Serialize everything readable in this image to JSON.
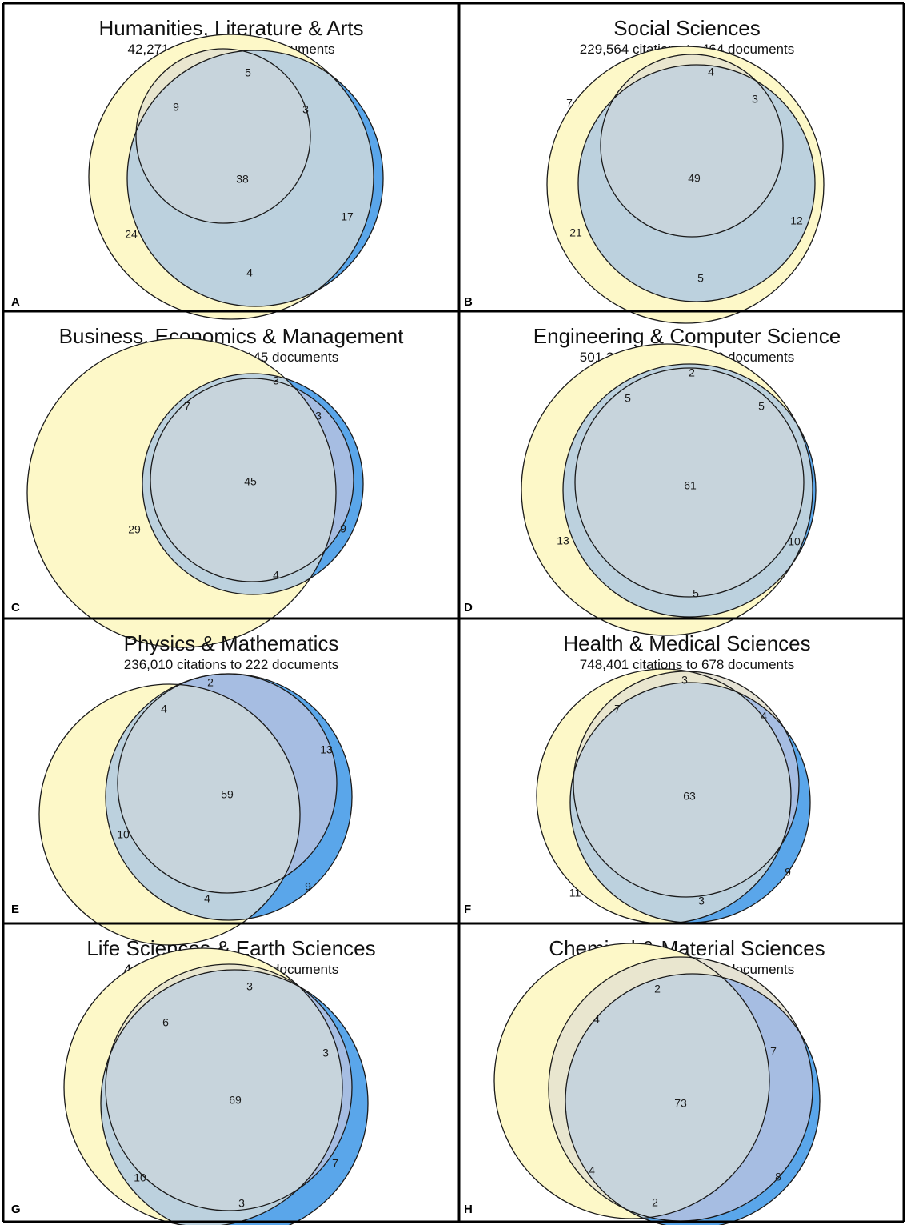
{
  "colors": {
    "set_a": "#fdf8c8",
    "set_b": "#e5e2d4",
    "set_c": "#5aa6ea",
    "a_and_b": "#e9e6cf",
    "b_and_c": "#a6bde2",
    "a_and_c": "#bcd1de",
    "a_and_b_and_c": "#c7d4dc",
    "outline": "#1a1a1a",
    "frame": "#000000"
  },
  "panels": [
    {
      "letter": "A",
      "title": "Humanities, Literature & Arts",
      "subtitle": "42,271 citations to 203 documents",
      "labels": [
        "24",
        "9",
        "5",
        "3",
        "38",
        "17",
        "4"
      ]
    },
    {
      "letter": "B",
      "title": "Social Sciences",
      "subtitle": "229,564 citations to 464 documents",
      "labels": [
        "21",
        "7",
        "4",
        "3",
        "49",
        "12",
        "5"
      ]
    },
    {
      "letter": "C",
      "title": "Business, Economics & Management",
      "subtitle": "129,493 citations to 145 documents",
      "labels": [
        "29",
        "7",
        "3",
        "3",
        "45",
        "9",
        "4"
      ]
    },
    {
      "letter": "D",
      "title": "Engineering & Computer Science",
      "subtitle": "501,231 citations to 549 documents",
      "labels": [
        "13",
        "5",
        "2",
        "5",
        "61",
        "10",
        "5"
      ]
    },
    {
      "letter": "E",
      "title": "Physics & Mathematics",
      "subtitle": "236,010 citations to 222 documents",
      "labels": [
        "10",
        "4",
        "2",
        "13",
        "59",
        "9",
        "4"
      ]
    },
    {
      "letter": "F",
      "title": "Health & Medical Sciences",
      "subtitle": "748,401 citations to 678 documents",
      "labels": [
        "11",
        "7",
        "3",
        "4",
        "63",
        "9",
        "3"
      ]
    },
    {
      "letter": "G",
      "title": "Life Sciences & Earth Sciences",
      "subtitle": "442,250 citations to 377 documents",
      "labels": [
        "10",
        "6",
        "3",
        "3",
        "69",
        "7",
        "3"
      ]
    },
    {
      "letter": "H",
      "title": "Chemical & Material Sciences",
      "subtitle": "212,145 citations to 170 documents",
      "labels": [
        "4",
        "4",
        "2",
        "7",
        "73",
        "8",
        "2"
      ]
    }
  ]
}
